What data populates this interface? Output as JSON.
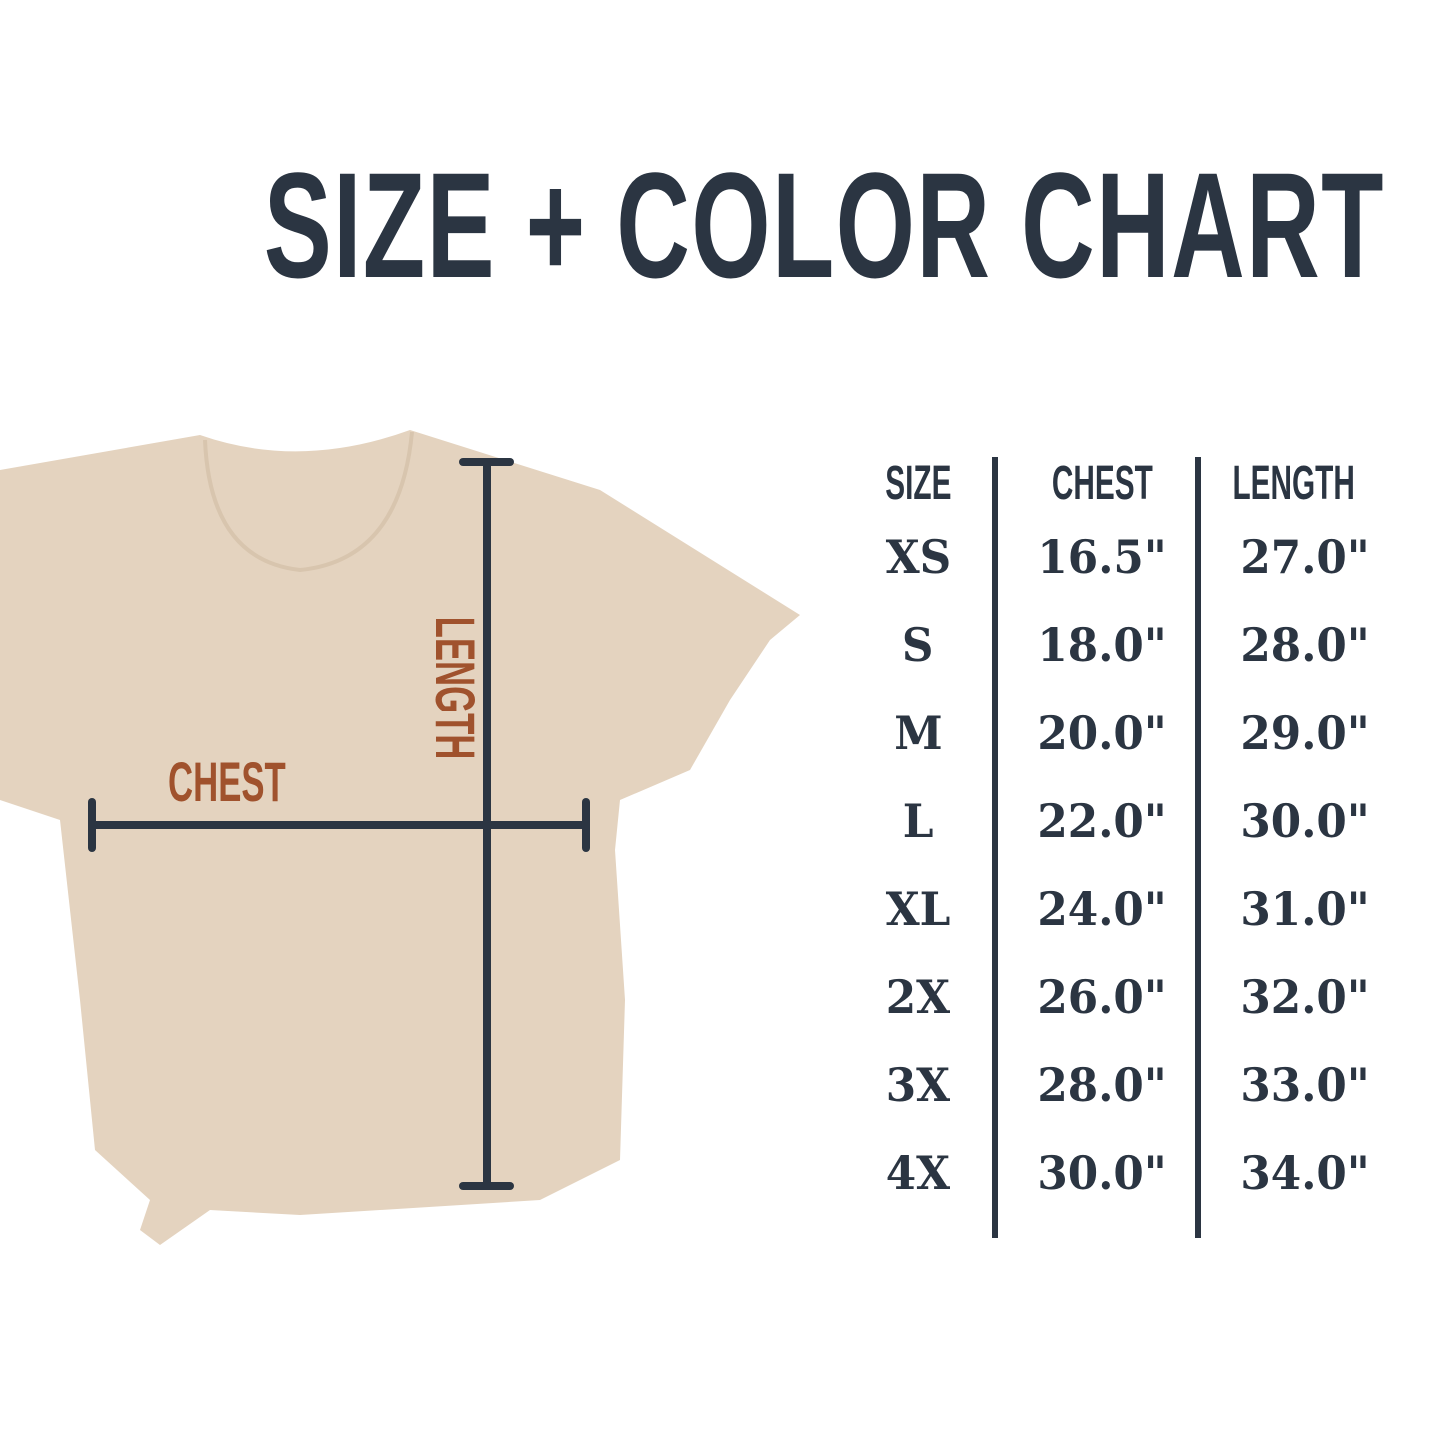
{
  "title": "SIZE + COLOR CHART",
  "shirt": {
    "color": "#e4d3bf",
    "chest_label": "CHEST",
    "length_label": "LENGTH"
  },
  "colors": {
    "text": "#2b3542",
    "accent": "#a0522d"
  },
  "table": {
    "headers": [
      "SIZE",
      "CHEST",
      "LENGTH"
    ],
    "rows": [
      [
        "XS",
        "16.5\"",
        "27.0\""
      ],
      [
        "S",
        "18.0\"",
        "28.0\""
      ],
      [
        "M",
        "20.0\"",
        "29.0\""
      ],
      [
        "L",
        "22.0\"",
        "30.0\""
      ],
      [
        "XL",
        "24.0\"",
        "31.0\""
      ],
      [
        "2X",
        "26.0\"",
        "32.0\""
      ],
      [
        "3X",
        "28.0\"",
        "33.0\""
      ],
      [
        "4X",
        "30.0\"",
        "34.0\""
      ]
    ]
  }
}
